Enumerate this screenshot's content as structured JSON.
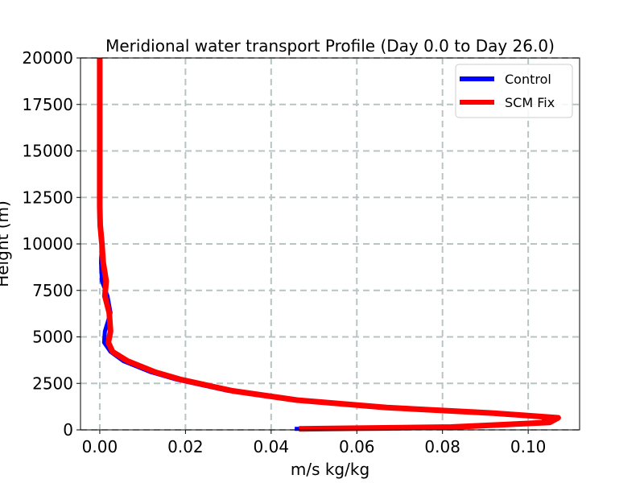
{
  "chart_data": {
    "type": "line",
    "title": "Meridional water transport Profile (Day 0.0 to Day 26.0)",
    "xlabel": "m/s kg/kg",
    "ylabel": "Height (m)",
    "xlim": [
      -0.0045,
      0.112
    ],
    "ylim": [
      0,
      20000
    ],
    "xticks": [
      0.0,
      0.02,
      0.04,
      0.06,
      0.08,
      0.1
    ],
    "xtick_labels": [
      "0.00",
      "0.02",
      "0.04",
      "0.06",
      "0.08",
      "0.10"
    ],
    "yticks": [
      0,
      2500,
      5000,
      7500,
      10000,
      12500,
      15000,
      17500,
      20000
    ],
    "ytick_labels": [
      "0",
      "2500",
      "5000",
      "7500",
      "10000",
      "12500",
      "15000",
      "17500",
      "20000"
    ],
    "grid": true,
    "legend_position": "top-right",
    "series": [
      {
        "name": "Control",
        "color": "#0000ff",
        "points": [
          [
            0.0455,
            50
          ],
          [
            0.08,
            150
          ],
          [
            0.103,
            400
          ],
          [
            0.105,
            650
          ],
          [
            0.09,
            900
          ],
          [
            0.065,
            1200
          ],
          [
            0.045,
            1600
          ],
          [
            0.03,
            2100
          ],
          [
            0.018,
            2700
          ],
          [
            0.012,
            3100
          ],
          [
            0.0055,
            3700
          ],
          [
            0.0025,
            4200
          ],
          [
            0.001,
            4700
          ],
          [
            0.0012,
            5300
          ],
          [
            0.0025,
            6300
          ],
          [
            0.0018,
            7200
          ],
          [
            0.0005,
            8000
          ],
          [
            0.0003,
            9000
          ],
          [
            0.0005,
            10000
          ],
          [
            0.0,
            11000
          ],
          [
            0.0,
            12000
          ],
          [
            0.0,
            15000
          ],
          [
            0.0,
            20000
          ]
        ]
      },
      {
        "name": "SCM Fix",
        "color": "#ff0000",
        "points": [
          [
            0.0465,
            50
          ],
          [
            0.082,
            150
          ],
          [
            0.105,
            400
          ],
          [
            0.107,
            650
          ],
          [
            0.092,
            900
          ],
          [
            0.067,
            1200
          ],
          [
            0.046,
            1600
          ],
          [
            0.031,
            2100
          ],
          [
            0.019,
            2700
          ],
          [
            0.013,
            3100
          ],
          [
            0.0065,
            3700
          ],
          [
            0.003,
            4200
          ],
          [
            0.002,
            4700
          ],
          [
            0.0025,
            5300
          ],
          [
            0.0022,
            6300
          ],
          [
            0.0012,
            7200
          ],
          [
            0.0015,
            8000
          ],
          [
            0.0008,
            9000
          ],
          [
            0.0005,
            10000
          ],
          [
            0.0001,
            11000
          ],
          [
            0.0,
            12000
          ],
          [
            0.0,
            15000
          ],
          [
            0.0,
            20000
          ]
        ]
      }
    ]
  }
}
